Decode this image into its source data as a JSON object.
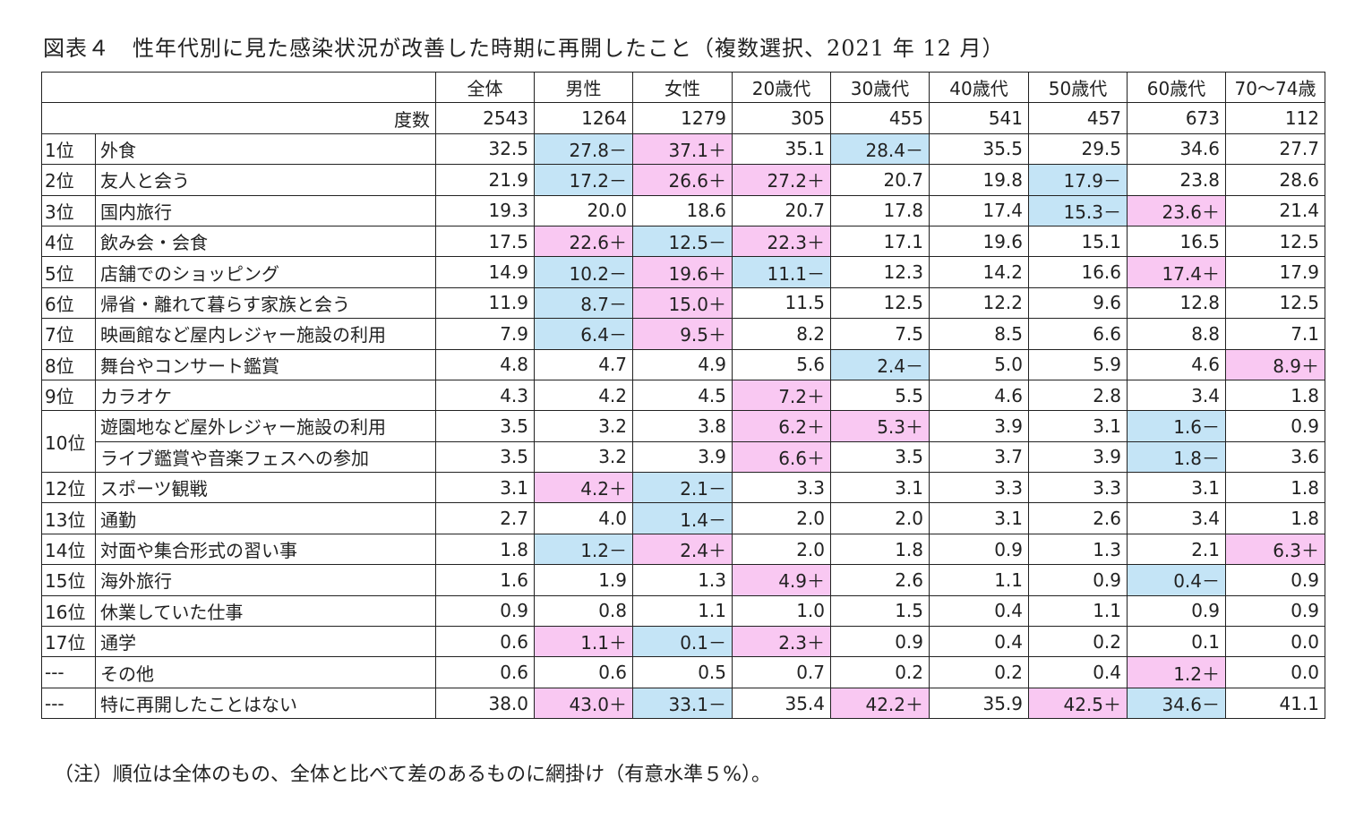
{
  "title": "図表４　性年代別に見た感染状況が改善した時期に再開したこと（複数選択、2021 年 12 月）",
  "note": "（注）順位は全体のもの、全体と比べて差のあるものに網掛け（有意水準５%）。",
  "colors": {
    "plus": "#f9c8f2",
    "minus": "#c4e4f6"
  },
  "columns": [
    "全体",
    "男性",
    "女性",
    "20歳代",
    "30歳代",
    "40歳代",
    "50歳代",
    "60歳代",
    "70～74歳"
  ],
  "degree_label": "度数",
  "degrees": [
    "2543",
    "1264",
    "1279",
    "305",
    "455",
    "541",
    "457",
    "673",
    "112"
  ],
  "rows": [
    {
      "rank": "1位",
      "item": "外食",
      "values": [
        "32.5",
        "27.8－",
        "37.1＋",
        "35.1",
        "28.4－",
        "35.5",
        "29.5",
        "34.6",
        "27.7"
      ]
    },
    {
      "rank": "2位",
      "item": "友人と会う",
      "values": [
        "21.9",
        "17.2－",
        "26.6＋",
        "27.2＋",
        "20.7",
        "19.8",
        "17.9－",
        "23.8",
        "28.6"
      ]
    },
    {
      "rank": "3位",
      "item": "国内旅行",
      "values": [
        "19.3",
        "20.0",
        "18.6",
        "20.7",
        "17.8",
        "17.4",
        "15.3－",
        "23.6＋",
        "21.4"
      ]
    },
    {
      "rank": "4位",
      "item": "飲み会・会食",
      "values": [
        "17.5",
        "22.6＋",
        "12.5－",
        "22.3＋",
        "17.1",
        "19.6",
        "15.1",
        "16.5",
        "12.5"
      ]
    },
    {
      "rank": "5位",
      "item": "店舗でのショッピング",
      "values": [
        "14.9",
        "10.2－",
        "19.6＋",
        "11.1－",
        "12.3",
        "14.2",
        "16.6",
        "17.4＋",
        "17.9"
      ]
    },
    {
      "rank": "6位",
      "item": "帰省・離れて暮らす家族と会う",
      "values": [
        "11.9",
        "8.7－",
        "15.0＋",
        "11.5",
        "12.5",
        "12.2",
        "9.6",
        "12.8",
        "12.5"
      ]
    },
    {
      "rank": "7位",
      "item": "映画館など屋内レジャー施設の利用",
      "values": [
        "7.9",
        "6.4－",
        "9.5＋",
        "8.2",
        "7.5",
        "8.5",
        "6.6",
        "8.8",
        "7.1"
      ]
    },
    {
      "rank": "8位",
      "item": "舞台やコンサート鑑賞",
      "values": [
        "4.8",
        "4.7",
        "4.9",
        "5.6",
        "2.4－",
        "5.0",
        "5.9",
        "4.6",
        "8.9＋"
      ]
    },
    {
      "rank": "9位",
      "item": "カラオケ",
      "values": [
        "4.3",
        "4.2",
        "4.5",
        "7.2＋",
        "5.5",
        "4.6",
        "2.8",
        "3.4",
        "1.8"
      ]
    },
    {
      "rank": "10位",
      "item": "遊園地など屋外レジャー施設の利用",
      "values": [
        "3.5",
        "3.2",
        "3.8",
        "6.2＋",
        "5.3＋",
        "3.9",
        "3.1",
        "1.6－",
        "0.9"
      ]
    },
    {
      "rank": "",
      "item": "ライブ鑑賞や音楽フェスへの参加",
      "values": [
        "3.5",
        "3.2",
        "3.9",
        "6.6＋",
        "3.5",
        "3.7",
        "3.9",
        "1.8－",
        "3.6"
      ]
    },
    {
      "rank": "12位",
      "item": "スポーツ観戦",
      "values": [
        "3.1",
        "4.2＋",
        "2.1－",
        "3.3",
        "3.1",
        "3.3",
        "3.3",
        "3.1",
        "1.8"
      ]
    },
    {
      "rank": "13位",
      "item": "通勤",
      "values": [
        "2.7",
        "4.0",
        "1.4－",
        "2.0",
        "2.0",
        "3.1",
        "2.6",
        "3.4",
        "1.8"
      ]
    },
    {
      "rank": "14位",
      "item": "対面や集合形式の習い事",
      "values": [
        "1.8",
        "1.2－",
        "2.4＋",
        "2.0",
        "1.8",
        "0.9",
        "1.3",
        "2.1",
        "6.3＋"
      ]
    },
    {
      "rank": "15位",
      "item": "海外旅行",
      "values": [
        "1.6",
        "1.9",
        "1.3",
        "4.9＋",
        "2.6",
        "1.1",
        "0.9",
        "0.4－",
        "0.9"
      ]
    },
    {
      "rank": "16位",
      "item": "休業していた仕事",
      "values": [
        "0.9",
        "0.8",
        "1.1",
        "1.0",
        "1.5",
        "0.4",
        "1.1",
        "0.9",
        "0.9"
      ]
    },
    {
      "rank": "17位",
      "item": "通学",
      "values": [
        "0.6",
        "1.1＋",
        "0.1－",
        "2.3＋",
        "0.9",
        "0.4",
        "0.2",
        "0.1",
        "0.0"
      ]
    },
    {
      "rank": "---",
      "item": "その他",
      "values": [
        "0.6",
        "0.6",
        "0.5",
        "0.7",
        "0.2",
        "0.2",
        "0.4",
        "1.2＋",
        "0.0"
      ]
    },
    {
      "rank": "---",
      "item": "特に再開したことはない",
      "values": [
        "38.0",
        "43.0＋",
        "33.1－",
        "35.4",
        "42.2＋",
        "35.9",
        "42.5＋",
        "34.6－",
        "41.1"
      ]
    }
  ]
}
